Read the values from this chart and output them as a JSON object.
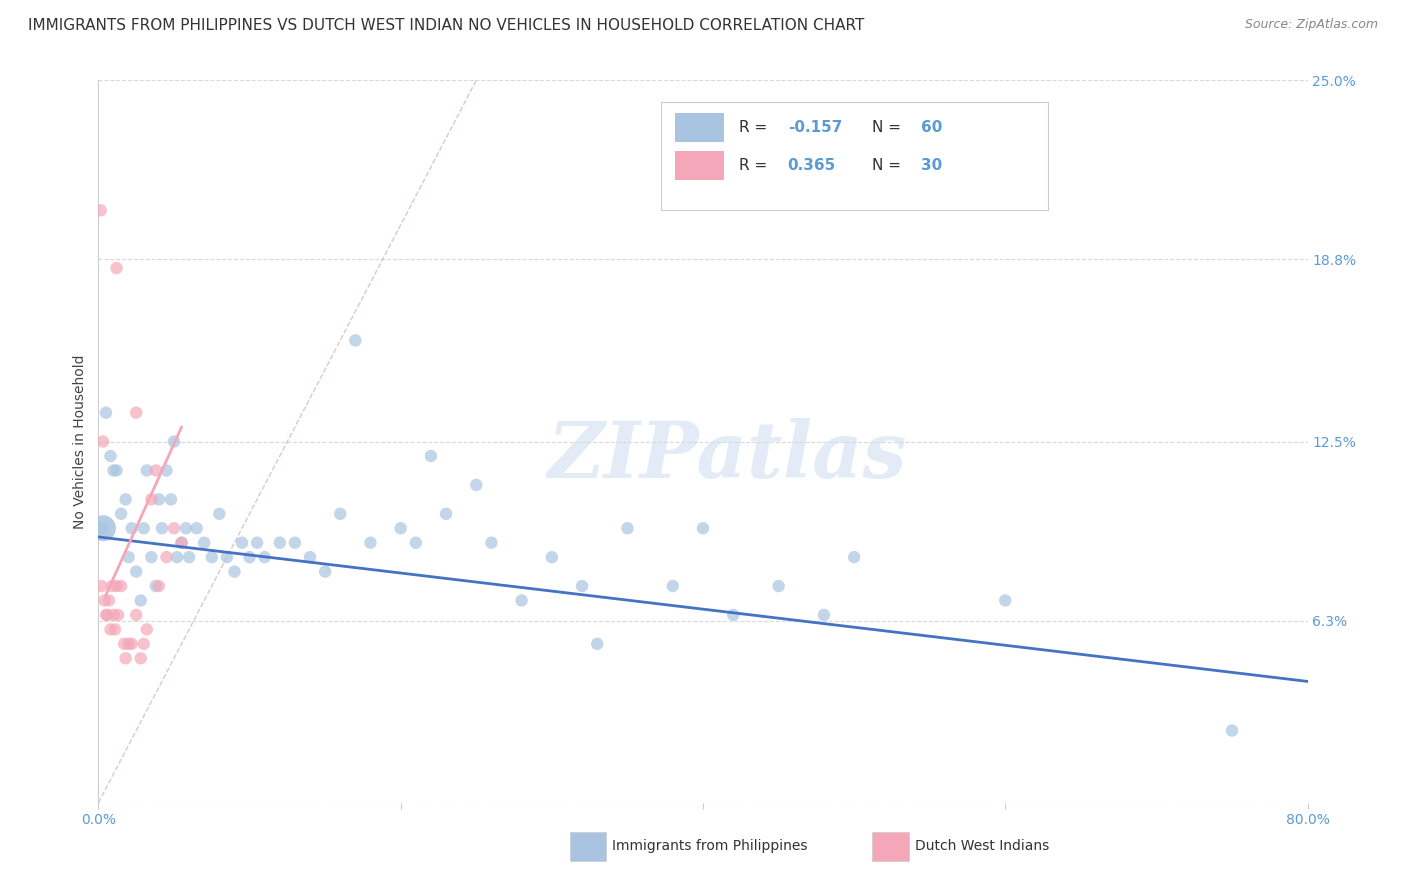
{
  "title": "IMMIGRANTS FROM PHILIPPINES VS DUTCH WEST INDIAN NO VEHICLES IN HOUSEHOLD CORRELATION CHART",
  "source": "Source: ZipAtlas.com",
  "ylabel": "No Vehicles in Household",
  "xlim": [
    0.0,
    80.0
  ],
  "ylim": [
    0.0,
    25.0
  ],
  "x_ticks": [
    0.0,
    20.0,
    40.0,
    60.0,
    80.0
  ],
  "x_tick_labels": [
    "0.0%",
    "",
    "",
    "",
    "80.0%"
  ],
  "y_right_ticks": [
    0.0,
    6.3,
    12.5,
    18.8,
    25.0
  ],
  "y_right_labels": [
    "",
    "6.3%",
    "12.5%",
    "18.8%",
    "25.0%"
  ],
  "axis_label_color": "#5b9bd5",
  "grid_color": "#d0d0d0",
  "watermark_text": "ZIPatlas",
  "blue_scatter": [
    [
      0.3,
      9.5
    ],
    [
      0.5,
      13.5
    ],
    [
      0.8,
      12.0
    ],
    [
      1.0,
      11.5
    ],
    [
      1.2,
      11.5
    ],
    [
      1.5,
      10.0
    ],
    [
      1.8,
      10.5
    ],
    [
      2.0,
      8.5
    ],
    [
      2.2,
      9.5
    ],
    [
      2.5,
      8.0
    ],
    [
      2.8,
      7.0
    ],
    [
      3.0,
      9.5
    ],
    [
      3.2,
      11.5
    ],
    [
      3.5,
      8.5
    ],
    [
      3.8,
      7.5
    ],
    [
      4.0,
      10.5
    ],
    [
      4.2,
      9.5
    ],
    [
      4.5,
      11.5
    ],
    [
      4.8,
      10.5
    ],
    [
      5.0,
      12.5
    ],
    [
      5.2,
      8.5
    ],
    [
      5.5,
      9.0
    ],
    [
      5.8,
      9.5
    ],
    [
      6.0,
      8.5
    ],
    [
      6.5,
      9.5
    ],
    [
      7.0,
      9.0
    ],
    [
      7.5,
      8.5
    ],
    [
      8.0,
      10.0
    ],
    [
      8.5,
      8.5
    ],
    [
      9.0,
      8.0
    ],
    [
      9.5,
      9.0
    ],
    [
      10.0,
      8.5
    ],
    [
      10.5,
      9.0
    ],
    [
      11.0,
      8.5
    ],
    [
      12.0,
      9.0
    ],
    [
      13.0,
      9.0
    ],
    [
      14.0,
      8.5
    ],
    [
      15.0,
      8.0
    ],
    [
      16.0,
      10.0
    ],
    [
      17.0,
      16.0
    ],
    [
      18.0,
      9.0
    ],
    [
      20.0,
      9.5
    ],
    [
      21.0,
      9.0
    ],
    [
      22.0,
      12.0
    ],
    [
      23.0,
      10.0
    ],
    [
      25.0,
      11.0
    ],
    [
      26.0,
      9.0
    ],
    [
      28.0,
      7.0
    ],
    [
      30.0,
      8.5
    ],
    [
      32.0,
      7.5
    ],
    [
      33.0,
      5.5
    ],
    [
      35.0,
      9.5
    ],
    [
      38.0,
      7.5
    ],
    [
      40.0,
      9.5
    ],
    [
      42.0,
      6.5
    ],
    [
      45.0,
      7.5
    ],
    [
      48.0,
      6.5
    ],
    [
      50.0,
      8.5
    ],
    [
      60.0,
      7.0
    ],
    [
      75.0,
      2.5
    ]
  ],
  "pink_scatter": [
    [
      0.2,
      7.5
    ],
    [
      0.4,
      7.0
    ],
    [
      0.5,
      6.5
    ],
    [
      0.6,
      6.5
    ],
    [
      0.7,
      7.0
    ],
    [
      0.8,
      6.0
    ],
    [
      0.9,
      7.5
    ],
    [
      1.0,
      6.5
    ],
    [
      1.1,
      6.0
    ],
    [
      1.2,
      7.5
    ],
    [
      1.3,
      6.5
    ],
    [
      1.5,
      7.5
    ],
    [
      1.7,
      5.5
    ],
    [
      1.8,
      5.0
    ],
    [
      2.0,
      5.5
    ],
    [
      2.2,
      5.5
    ],
    [
      2.5,
      6.5
    ],
    [
      2.8,
      5.0
    ],
    [
      3.0,
      5.5
    ],
    [
      3.2,
      6.0
    ],
    [
      3.5,
      10.5
    ],
    [
      4.0,
      7.5
    ],
    [
      4.5,
      8.5
    ],
    [
      5.0,
      9.5
    ],
    [
      5.5,
      9.0
    ],
    [
      0.15,
      20.5
    ],
    [
      1.2,
      18.5
    ],
    [
      2.5,
      13.5
    ],
    [
      3.8,
      11.5
    ],
    [
      0.3,
      12.5
    ]
  ],
  "large_blue_dot_x": 0.3,
  "large_blue_dot_y": 9.5,
  "large_blue_dot_size": 350,
  "blue_line": {
    "x0": 0.0,
    "x1": 80.0,
    "y0": 9.2,
    "y1": 4.2
  },
  "pink_line": {
    "x0": 0.5,
    "x1": 5.5,
    "y0": 7.2,
    "y1": 13.0
  },
  "diag_line_color": "#d0b0b0",
  "blue_line_color": "#4472c4",
  "pink_line_color": "#f4a7b9",
  "blue_scatter_color": "#a8c4e0",
  "pink_scatter_color": "#f4a7b9",
  "scatter_size": 80,
  "title_fontsize": 11,
  "source_fontsize": 9
}
